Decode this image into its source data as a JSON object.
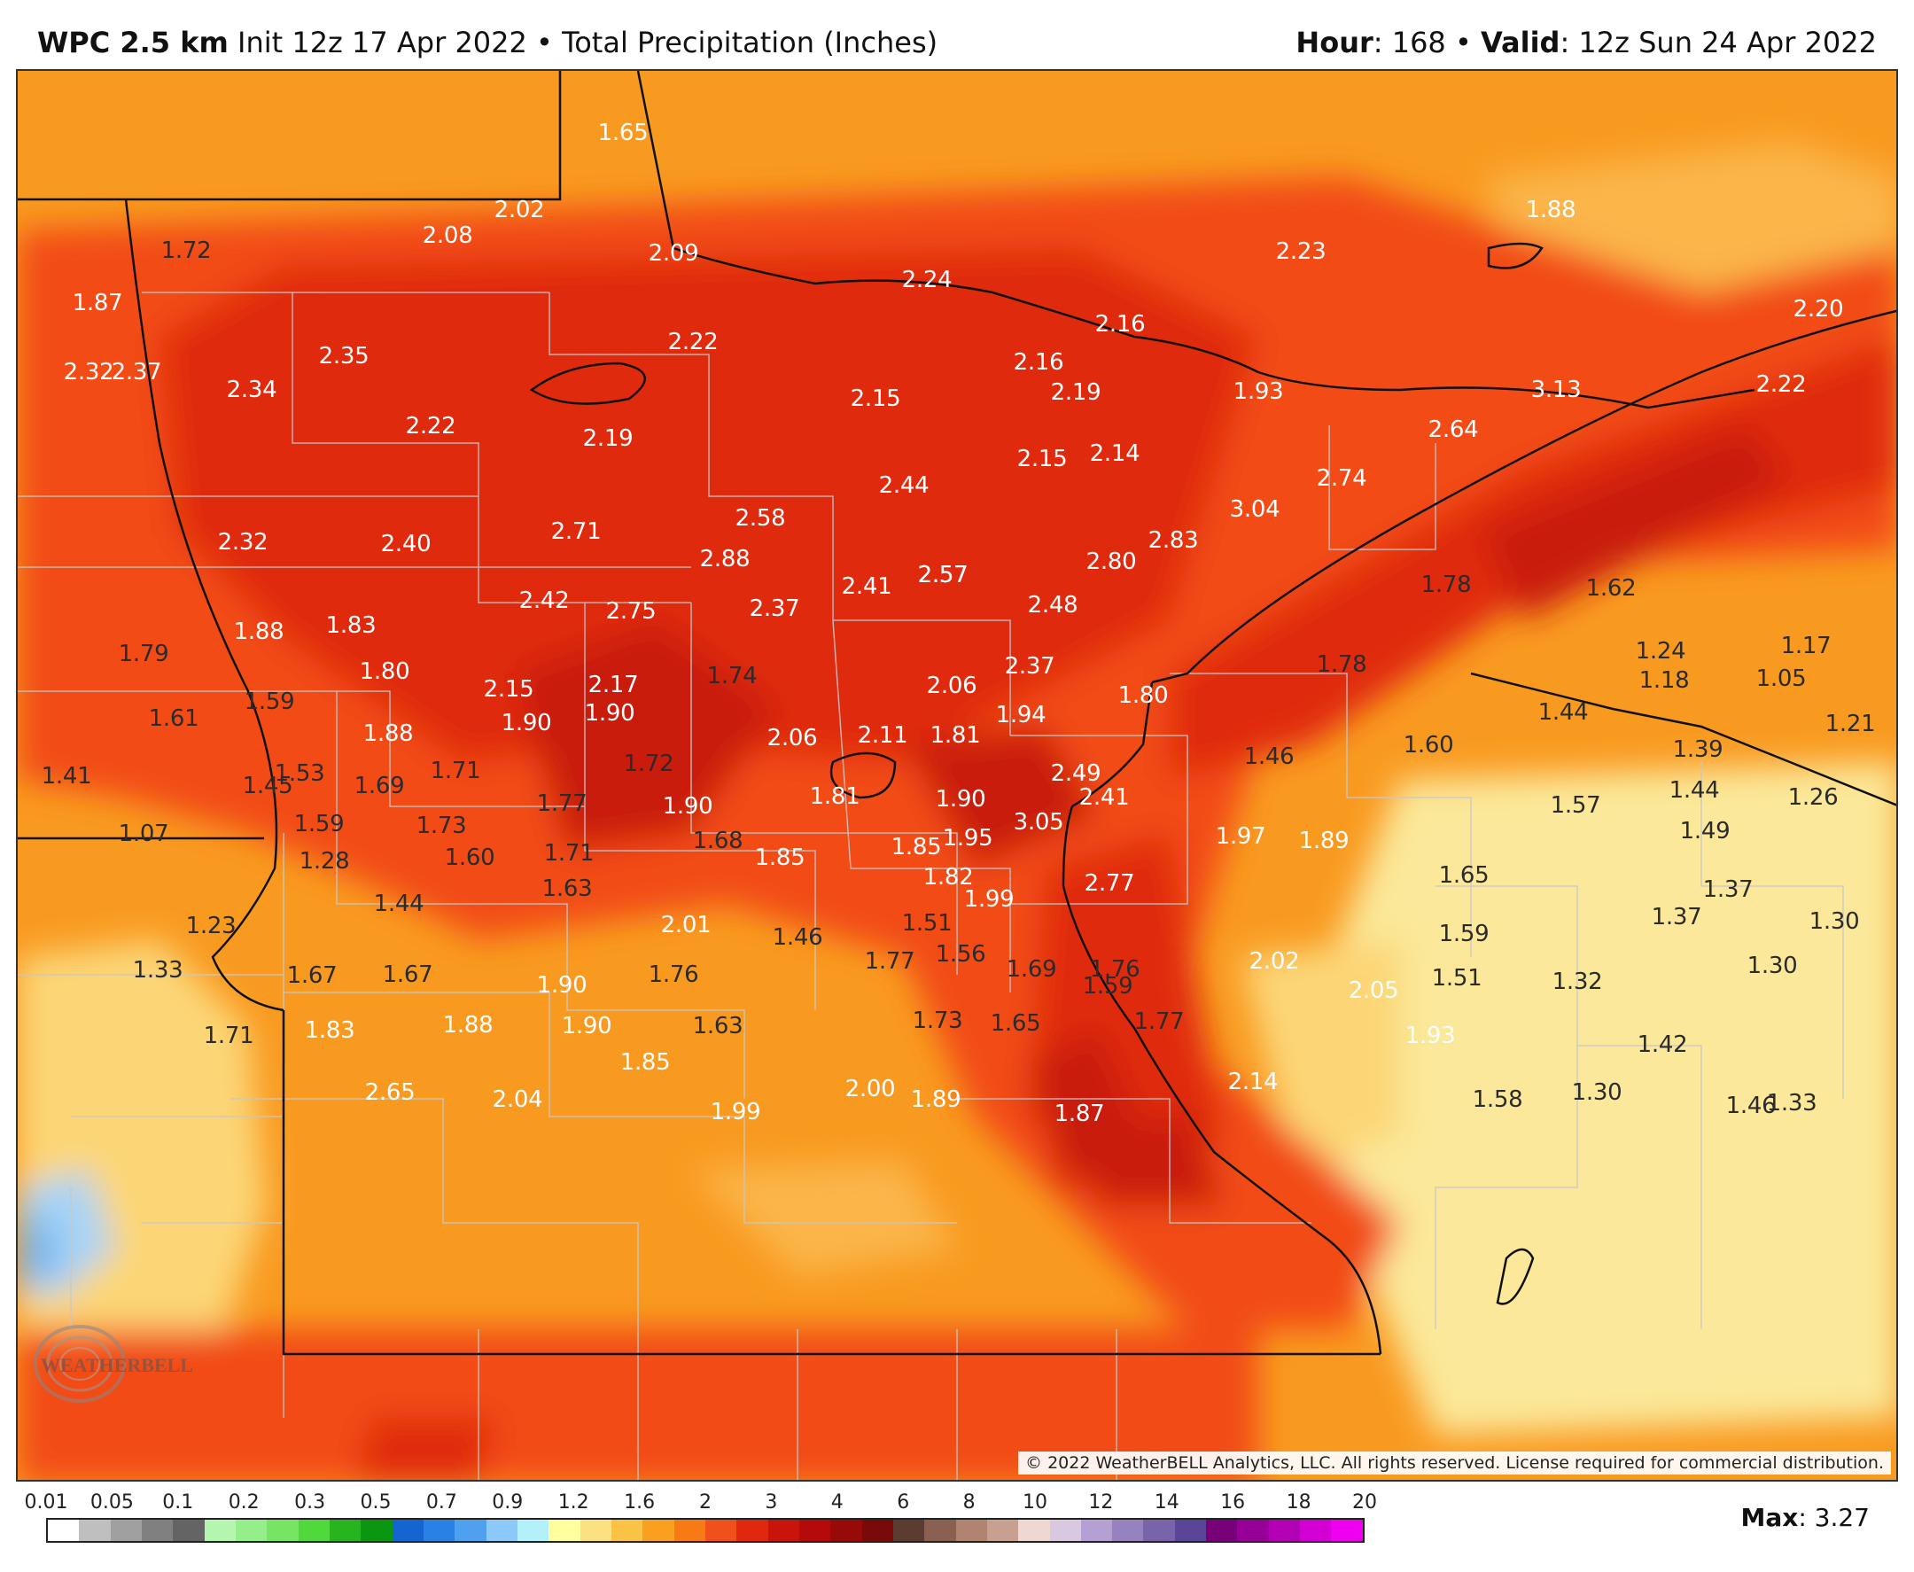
{
  "header": {
    "model": "WPC 2.5 km",
    "init": "Init 12z 17 Apr 2022",
    "bullet": "•",
    "product": "Total Precipitation (Inches)",
    "hour_label": "Hour",
    "hour_value": ": 168",
    "valid_label": "Valid",
    "valid_value": ": 12z Sun 24 Apr 2022"
  },
  "colors": {
    "very_light": "#fbe89a",
    "light_yellow": "#fcd676",
    "yellow_orange": "#fbb54a",
    "orange": "#f99a20",
    "dark_orange": "#f6701a",
    "red_orange": "#f24b16",
    "red": "#e02c10",
    "dark_red": "#c91a0d",
    "blue": "#7ab8f0",
    "light_blue": "#a8d4f5"
  },
  "values": [
    {
      "t": "1.65",
      "c": "l"
    },
    {
      "t": "2.02",
      "c": "l"
    },
    {
      "t": "1.72",
      "c": "d"
    },
    {
      "t": "2.08",
      "c": "l"
    },
    {
      "t": "2.09",
      "c": "l"
    },
    {
      "t": "2.24",
      "c": "l"
    },
    {
      "t": "1.88",
      "c": "l"
    },
    {
      "t": "2.23",
      "c": "l"
    },
    {
      "t": "1.87",
      "c": "l"
    },
    {
      "t": "2.22",
      "c": "l"
    },
    {
      "t": "2.16",
      "c": "l"
    },
    {
      "t": "2.20",
      "c": "l"
    },
    {
      "t": "2.35",
      "c": "l"
    },
    {
      "t": "2.32",
      "c": "l"
    },
    {
      "t": "2.37",
      "c": "l"
    },
    {
      "t": "2.34",
      "c": "l"
    },
    {
      "t": "2.16",
      "c": "l"
    },
    {
      "t": "2.19",
      "c": "l"
    },
    {
      "t": "2.15",
      "c": "l"
    },
    {
      "t": "1.93",
      "c": "l"
    },
    {
      "t": "3.13",
      "c": "l"
    },
    {
      "t": "2.22",
      "c": "l"
    },
    {
      "t": "2.22",
      "c": "l"
    },
    {
      "t": "2.19",
      "c": "l"
    },
    {
      "t": "2.64",
      "c": "l"
    },
    {
      "t": "2.15",
      "c": "l"
    },
    {
      "t": "2.14",
      "c": "l"
    },
    {
      "t": "2.44",
      "c": "l"
    },
    {
      "t": "2.74",
      "c": "l"
    },
    {
      "t": "3.04",
      "c": "l"
    },
    {
      "t": "2.58",
      "c": "l"
    },
    {
      "t": "2.57",
      "c": "l"
    },
    {
      "t": "2.32",
      "c": "l"
    },
    {
      "t": "2.71",
      "c": "l"
    },
    {
      "t": "2.40",
      "c": "l"
    },
    {
      "t": "2.83",
      "c": "l"
    },
    {
      "t": "2.88",
      "c": "l"
    },
    {
      "t": "2.80",
      "c": "l"
    },
    {
      "t": "2.41",
      "c": "l"
    },
    {
      "t": "2.57",
      "c": "l"
    },
    {
      "t": "1.78",
      "c": "d"
    },
    {
      "t": "1.62",
      "c": "d"
    },
    {
      "t": "2.42",
      "c": "l"
    },
    {
      "t": "2.75",
      "c": "l"
    },
    {
      "t": "2.37",
      "c": "l"
    },
    {
      "t": "2.48",
      "c": "l"
    },
    {
      "t": "1.88",
      "c": "l"
    },
    {
      "t": "1.83",
      "c": "l"
    },
    {
      "t": "1.79",
      "c": "d"
    },
    {
      "t": "1.24",
      "c": "d"
    },
    {
      "t": "1.17",
      "c": "d"
    },
    {
      "t": "2.37",
      "c": "l"
    },
    {
      "t": "1.78",
      "c": "d"
    },
    {
      "t": "1.80",
      "c": "l"
    },
    {
      "t": "1.74",
      "c": "d"
    },
    {
      "t": "2.17",
      "c": "l"
    },
    {
      "t": "2.15",
      "c": "l"
    },
    {
      "t": "2.06",
      "c": "l"
    },
    {
      "t": "1.18",
      "c": "d"
    },
    {
      "t": "1.05",
      "c": "d"
    },
    {
      "t": "1.59",
      "c": "d"
    },
    {
      "t": "1.80",
      "c": "l"
    },
    {
      "t": "1.61",
      "c": "d"
    },
    {
      "t": "1.90",
      "c": "l"
    },
    {
      "t": "1.90",
      "c": "l"
    },
    {
      "t": "1.94",
      "c": "l"
    },
    {
      "t": "1.44",
      "c": "d"
    },
    {
      "t": "1.21",
      "c": "d"
    },
    {
      "t": "1.88",
      "c": "l"
    },
    {
      "t": "2.06",
      "c": "l"
    },
    {
      "t": "2.11",
      "c": "l"
    },
    {
      "t": "1.81",
      "c": "l"
    },
    {
      "t": "1.60",
      "c": "d"
    },
    {
      "t": "1.46",
      "c": "d"
    },
    {
      "t": "1.39",
      "c": "d"
    },
    {
      "t": "1.41",
      "c": "d"
    },
    {
      "t": "1.53",
      "c": "d"
    },
    {
      "t": "1.71",
      "c": "d"
    },
    {
      "t": "1.72",
      "c": "d"
    },
    {
      "t": "2.49",
      "c": "l"
    },
    {
      "t": "1.45",
      "c": "d"
    },
    {
      "t": "1.69",
      "c": "d"
    },
    {
      "t": "1.77",
      "c": "d"
    },
    {
      "t": "1.90",
      "c": "l"
    },
    {
      "t": "1.81",
      "c": "l"
    },
    {
      "t": "1.90",
      "c": "l"
    },
    {
      "t": "2.41",
      "c": "l"
    },
    {
      "t": "1.57",
      "c": "d"
    },
    {
      "t": "1.44",
      "c": "d"
    },
    {
      "t": "1.26",
      "c": "d"
    },
    {
      "t": "1.59",
      "c": "d"
    },
    {
      "t": "1.73",
      "c": "d"
    },
    {
      "t": "3.05",
      "c": "l"
    },
    {
      "t": "1.07",
      "c": "d"
    },
    {
      "t": "1.60",
      "c": "d"
    },
    {
      "t": "1.71",
      "c": "d"
    },
    {
      "t": "1.68",
      "c": "d"
    },
    {
      "t": "1.85",
      "c": "l"
    },
    {
      "t": "1.85",
      "c": "l"
    },
    {
      "t": "1.95",
      "c": "l"
    },
    {
      "t": "1.97",
      "c": "l"
    },
    {
      "t": "1.89",
      "c": "l"
    },
    {
      "t": "1.49",
      "c": "d"
    },
    {
      "t": "1.28",
      "c": "d"
    },
    {
      "t": "1.82",
      "c": "l"
    },
    {
      "t": "1.65",
      "c": "d"
    },
    {
      "t": "1.63",
      "c": "d"
    },
    {
      "t": "2.77",
      "c": "l"
    },
    {
      "t": "1.37",
      "c": "d"
    },
    {
      "t": "1.44",
      "c": "d"
    },
    {
      "t": "1.99",
      "c": "l"
    },
    {
      "t": "1.23",
      "c": "d"
    },
    {
      "t": "2.01",
      "c": "l"
    },
    {
      "t": "1.51",
      "c": "d"
    },
    {
      "t": "1.37",
      "c": "d"
    },
    {
      "t": "1.30",
      "c": "d"
    },
    {
      "t": "1.46",
      "c": "d"
    },
    {
      "t": "1.59",
      "c": "d"
    },
    {
      "t": "1.77",
      "c": "d"
    },
    {
      "t": "1.56",
      "c": "d"
    },
    {
      "t": "1.33",
      "c": "d"
    },
    {
      "t": "1.67",
      "c": "d"
    },
    {
      "t": "1.67",
      "c": "d"
    },
    {
      "t": "2.02",
      "c": "l"
    },
    {
      "t": "1.30",
      "c": "d"
    },
    {
      "t": "1.76",
      "c": "d"
    },
    {
      "t": "1.69",
      "c": "d"
    },
    {
      "t": "1.76",
      "c": "d"
    },
    {
      "t": "1.51",
      "c": "d"
    },
    {
      "t": "1.90",
      "c": "l"
    },
    {
      "t": "1.59",
      "c": "d"
    },
    {
      "t": "1.32",
      "c": "d"
    },
    {
      "t": "2.05",
      "c": "l"
    },
    {
      "t": "1.73",
      "c": "d"
    },
    {
      "t": "1.65",
      "c": "d"
    },
    {
      "t": "1.77",
      "c": "d"
    },
    {
      "t": "1.71",
      "c": "d"
    },
    {
      "t": "1.83",
      "c": "l"
    },
    {
      "t": "1.88",
      "c": "l"
    },
    {
      "t": "1.90",
      "c": "l"
    },
    {
      "t": "1.63",
      "c": "d"
    },
    {
      "t": "1.93",
      "c": "l"
    },
    {
      "t": "1.42",
      "c": "d"
    },
    {
      "t": "1.85",
      "c": "l"
    },
    {
      "t": "2.65",
      "c": "l"
    },
    {
      "t": "2.14",
      "c": "l"
    },
    {
      "t": "2.04",
      "c": "l"
    },
    {
      "t": "2.00",
      "c": "l"
    },
    {
      "t": "1.89",
      "c": "l"
    },
    {
      "t": "1.30",
      "c": "d"
    },
    {
      "t": "1.58",
      "c": "d"
    },
    {
      "t": "1.99",
      "c": "l"
    },
    {
      "t": "1.87",
      "c": "l"
    },
    {
      "t": "1.46",
      "c": "d"
    },
    {
      "t": "1.33",
      "c": "d"
    }
  ],
  "copyright": "© 2022 WeatherBELL Analytics, LLC. All rights reserved. License required for commercial distribution.",
  "logo_text": "WEATHERBELL",
  "legend": {
    "ticks": [
      "0.01",
      "0.05",
      "0.1",
      "0.2",
      "0.3",
      "0.5",
      "0.7",
      "0.9",
      "1.2",
      "1.6",
      "2",
      "3",
      "4",
      "6",
      "8",
      "10",
      "12",
      "14",
      "16",
      "18",
      "20"
    ],
    "swatches": [
      "#ffffff",
      "#bfbfbf",
      "#a0a0a0",
      "#808080",
      "#646464",
      "#b4f5b0",
      "#96ee8a",
      "#78e464",
      "#50d83c",
      "#28b41e",
      "#0a9610",
      "#1464d2",
      "#2882e6",
      "#50a0f0",
      "#8cc8f8",
      "#b4f0fa",
      "#ffffa0",
      "#fbe182",
      "#fbc346",
      "#f9a01e",
      "#f77a14",
      "#f0501a",
      "#e0280f",
      "#c8140a",
      "#b40a0a",
      "#960a0a",
      "#7a0a0a",
      "#5a3c32",
      "#8a6050",
      "#b08470",
      "#c8a090",
      "#f0d8d2",
      "#d8c8e0",
      "#b4a0d2",
      "#9682be",
      "#7864aa",
      "#5a4696",
      "#780078",
      "#960096",
      "#b400b4",
      "#d200d2",
      "#f000f0"
    ]
  },
  "max_label": "Max",
  "max_value": ": 3.27"
}
